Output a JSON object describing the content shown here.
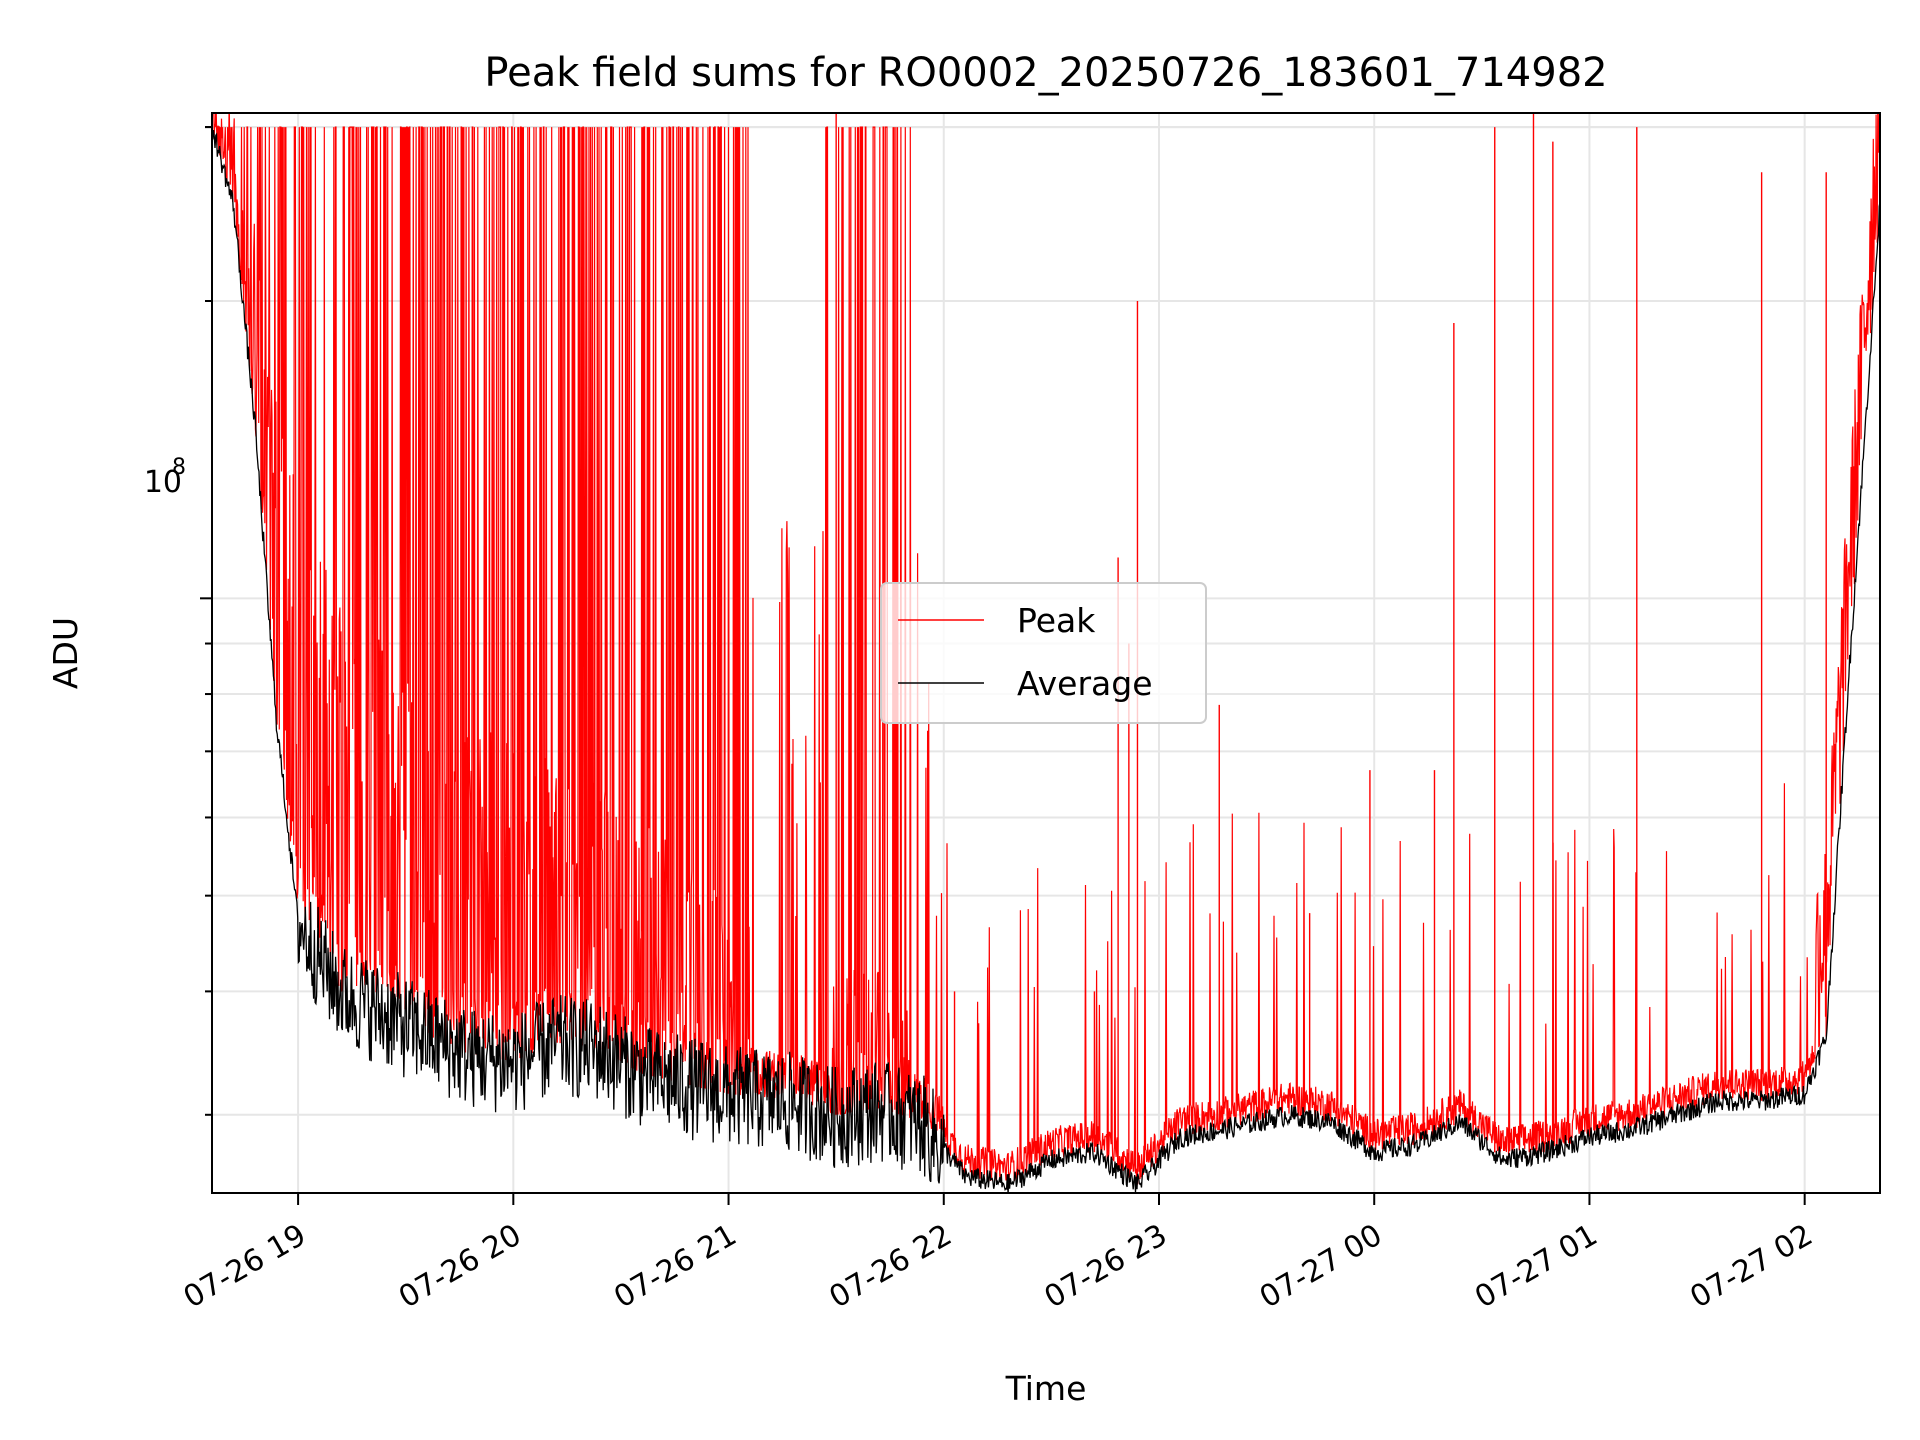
{
  "chart_data": {
    "type": "line",
    "title": "Peak field sums for RO0002_20250726_183601_714982",
    "xlabel": "Time",
    "ylabel": "ADU",
    "y_scale": "log",
    "y_tick_label": {
      "base": "10",
      "exp": "8"
    },
    "x_range": [
      "2025-07-26 18:36",
      "2025-07-27 02:21"
    ],
    "ylim": [
      25000000,
      310000000
    ],
    "x_ticks": [
      "07-26 19",
      "07-26 20",
      "07-26 21",
      "07-26 22",
      "07-26 23",
      "07-27 00",
      "07-27 01",
      "07-27 02"
    ],
    "grid": true,
    "legend": {
      "placement": "center",
      "entries": [
        "Peak",
        "Average"
      ]
    },
    "series": [
      {
        "name": "Peak",
        "color": "#ff0000",
        "envelope_hours": [
          18.6,
          18.7,
          18.8,
          19.0,
          19.5,
          20.0,
          20.5,
          21.0,
          21.5,
          21.8,
          22.0,
          22.3,
          22.6,
          22.9,
          23.3,
          23.7,
          24.0,
          24.3,
          24.7,
          25.0,
          25.3,
          25.7,
          26.0,
          26.2,
          26.35
        ],
        "envelope_values": [
          300000000,
          240000000,
          180000000,
          90000000,
          60000000,
          52000000,
          45000000,
          36000000,
          31000000,
          30000000,
          27000000,
          25500000,
          28000000,
          25500000,
          30000000,
          32500000,
          28500000,
          31500000,
          26500000,
          28500000,
          30000000,
          31000000,
          36000000,
          120000000,
          300000000
        ],
        "spikes": [
          {
            "hour": 20.6,
            "value": 200000000
          },
          {
            "hour": 21.5,
            "value": 310000000
          },
          {
            "hour": 22.05,
            "value": 40000000
          },
          {
            "hour": 22.7,
            "value": 40000000
          },
          {
            "hour": 22.81,
            "value": 110000000
          },
          {
            "hour": 22.86,
            "value": 90000000
          },
          {
            "hour": 22.9,
            "value": 200000000
          },
          {
            "hour": 23.28,
            "value": 78000000
          },
          {
            "hour": 23.7,
            "value": 48000000
          },
          {
            "hour": 23.98,
            "value": 67000000
          },
          {
            "hour": 24.28,
            "value": 67000000
          },
          {
            "hour": 24.37,
            "value": 190000000
          },
          {
            "hour": 24.56,
            "value": 300000000
          },
          {
            "hour": 24.74,
            "value": 310000000
          },
          {
            "hour": 24.83,
            "value": 290000000
          },
          {
            "hour": 25.22,
            "value": 300000000
          },
          {
            "hour": 25.8,
            "value": 270000000
          },
          {
            "hour": 26.1,
            "value": 270000000
          }
        ]
      },
      {
        "name": "Average",
        "color": "#000000",
        "hours": [
          18.6,
          18.7,
          18.8,
          18.9,
          19.0,
          19.2,
          19.5,
          19.8,
          20.0,
          20.2,
          20.4,
          20.6,
          21.0,
          21.3,
          21.5,
          21.7,
          21.9,
          22.1,
          22.3,
          22.5,
          22.7,
          22.9,
          23.1,
          23.3,
          23.6,
          23.8,
          24.0,
          24.2,
          24.4,
          24.6,
          24.8,
          25.0,
          25.2,
          25.4,
          25.6,
          25.8,
          26.0,
          26.1,
          26.2,
          26.35
        ],
        "values": [
          300000000,
          250000000,
          150000000,
          75000000,
          47000000,
          40000000,
          37000000,
          34500000,
          34000000,
          35500000,
          35000000,
          33000000,
          31500000,
          31000000,
          30000000,
          30500000,
          29500000,
          26000000,
          25500000,
          27000000,
          27500000,
          25500000,
          28500000,
          29000000,
          30000000,
          29500000,
          27500000,
          28000000,
          29500000,
          27000000,
          27500000,
          28500000,
          29000000,
          30000000,
          31000000,
          31000000,
          31500000,
          36000000,
          80000000,
          250000000
        ]
      }
    ]
  }
}
